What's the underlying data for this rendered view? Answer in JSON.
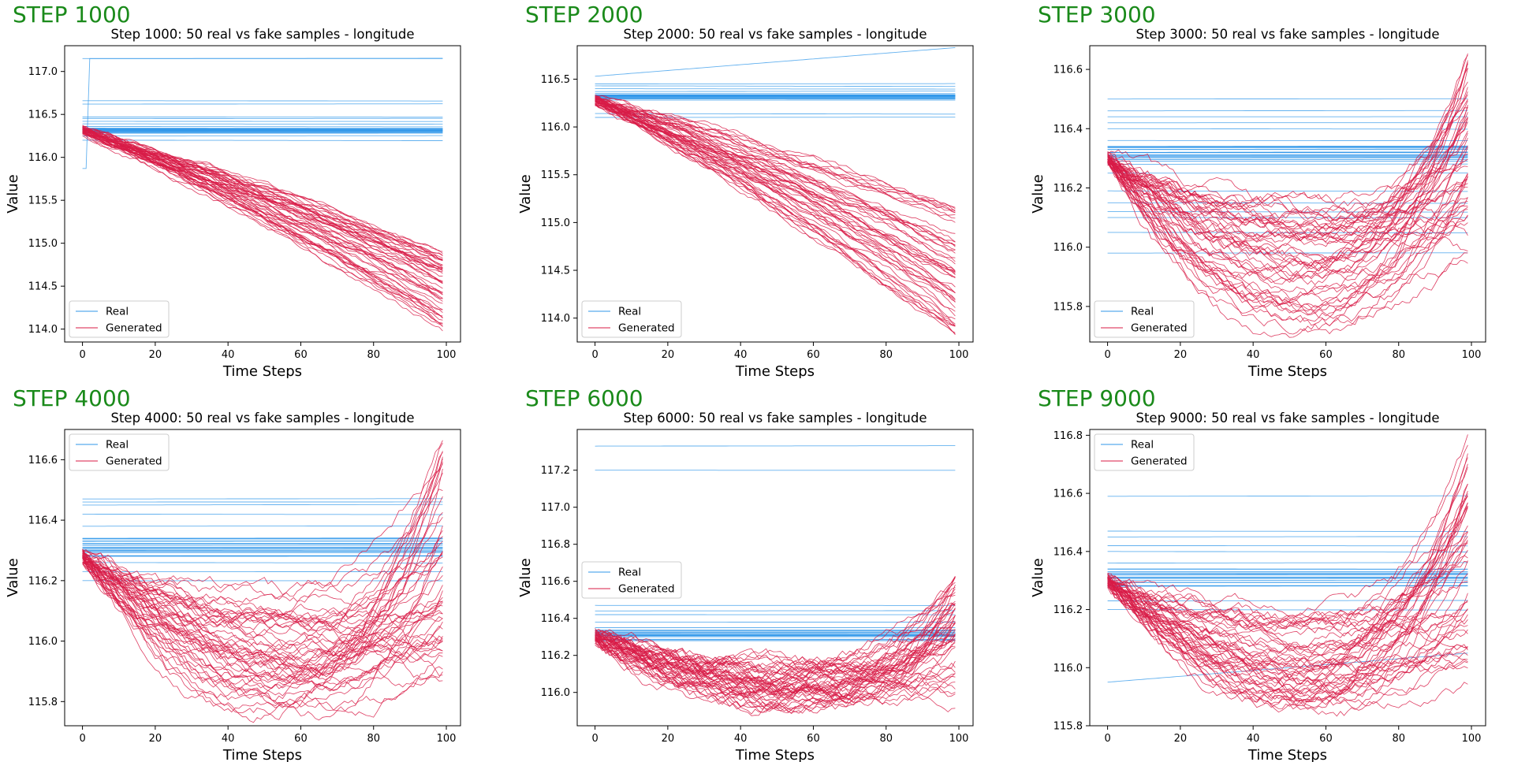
{
  "colors": {
    "real": "#2f97e9",
    "generated": "#d81b46",
    "step_label": "#1a8a1a"
  },
  "legend": {
    "real": "Real",
    "generated": "Generated"
  },
  "xlabel": "Time Steps",
  "ylabel": "Value",
  "chart_data": [
    {
      "step_label": "STEP 1000",
      "type": "line",
      "title": "Step 1000: 50 real vs fake samples - longitude",
      "xlabel": "Time Steps",
      "ylabel": "Value",
      "xlim": [
        0,
        99
      ],
      "ylim": [
        113.85,
        117.3
      ],
      "xticks": [
        0,
        20,
        40,
        60,
        80,
        100
      ],
      "yticks": [
        114.0,
        114.5,
        115.0,
        115.5,
        116.0,
        116.5,
        117.0
      ],
      "legend_loc": "lower-left",
      "real": {
        "levels": [
          117.15,
          116.66,
          116.62,
          116.47,
          116.45,
          116.42,
          116.39,
          116.36,
          116.34,
          116.33,
          116.33,
          116.32,
          116.32,
          116.31,
          116.3,
          116.28,
          116.25,
          116.2
        ],
        "jump": {
          "from": 115.87,
          "to": 117.15,
          "at": 2
        }
      },
      "generated": {
        "pattern": "decline",
        "start": 116.32,
        "end_range": [
          113.95,
          114.95
        ]
      }
    },
    {
      "step_label": "STEP 2000",
      "type": "line",
      "title": "Step 2000: 50 real vs fake samples - longitude",
      "xlabel": "Time Steps",
      "ylabel": "Value",
      "xlim": [
        0,
        99
      ],
      "ylim": [
        113.75,
        116.85
      ],
      "xticks": [
        0,
        20,
        40,
        60,
        80,
        100
      ],
      "yticks": [
        114.0,
        114.5,
        115.0,
        115.5,
        116.0,
        116.5
      ],
      "legend_loc": "lower-left",
      "real": {
        "levels": [
          116.45,
          116.43,
          116.4,
          116.37,
          116.35,
          116.33,
          116.32,
          116.3,
          116.28,
          116.14,
          116.1
        ],
        "rising": {
          "from": 116.53,
          "to": 116.83
        }
      },
      "generated": {
        "pattern": "decline",
        "start": 116.28,
        "end_range": [
          113.82,
          115.15
        ]
      }
    },
    {
      "step_label": "STEP 3000",
      "type": "line",
      "title": "Step 3000: 50 real vs fake samples - longitude",
      "xlabel": "Time Steps",
      "ylabel": "Value",
      "xlim": [
        0,
        99
      ],
      "ylim": [
        115.68,
        116.68
      ],
      "xticks": [
        0,
        20,
        40,
        60,
        80,
        100
      ],
      "yticks": [
        115.8,
        116.0,
        116.2,
        116.4,
        116.6
      ],
      "legend_loc": "lower-left",
      "real": {
        "levels": [
          116.5,
          116.46,
          116.44,
          116.42,
          116.4,
          116.36,
          116.34,
          116.33,
          116.32,
          116.31,
          116.3,
          116.28,
          116.25,
          116.19,
          116.15,
          116.12,
          116.1,
          116.05,
          115.98
        ]
      },
      "generated": {
        "pattern": "u-shape",
        "start": 116.3,
        "min_range": [
          115.72,
          116.15
        ],
        "end_range": [
          115.95,
          116.65
        ]
      }
    },
    {
      "step_label": "STEP 4000",
      "type": "line",
      "title": "Step 4000: 50 real vs fake samples - longitude",
      "xlabel": "Time Steps",
      "ylabel": "Value",
      "xlim": [
        0,
        99
      ],
      "ylim": [
        115.72,
        116.7
      ],
      "xticks": [
        0,
        20,
        40,
        60,
        80,
        100
      ],
      "yticks": [
        115.8,
        116.0,
        116.2,
        116.4,
        116.6
      ],
      "legend_loc": "upper-left",
      "real": {
        "levels": [
          116.47,
          116.46,
          116.45,
          116.42,
          116.38,
          116.34,
          116.33,
          116.32,
          116.31,
          116.3,
          116.28,
          116.26,
          116.23,
          116.2
        ]
      },
      "generated": {
        "pattern": "u-shape",
        "start": 116.28,
        "min_range": [
          115.76,
          116.15
        ],
        "end_range": [
          115.85,
          116.66
        ]
      }
    },
    {
      "step_label": "STEP 6000",
      "type": "line",
      "title": "Step 6000: 50 real vs fake samples - longitude",
      "xlabel": "Time Steps",
      "ylabel": "Value",
      "xlim": [
        0,
        99
      ],
      "ylim": [
        115.82,
        117.42
      ],
      "xticks": [
        0,
        20,
        40,
        60,
        80,
        100
      ],
      "yticks": [
        116.0,
        116.2,
        116.4,
        116.6,
        116.8,
        117.0,
        117.2
      ],
      "legend_loc": "center-left",
      "real": {
        "levels": [
          117.33,
          117.2,
          116.47,
          116.44,
          116.42,
          116.38,
          116.35,
          116.33,
          116.32,
          116.31,
          116.3,
          116.28
        ]
      },
      "generated": {
        "pattern": "u-shape",
        "start": 116.3,
        "min_range": [
          115.92,
          116.15
        ],
        "end_range": [
          115.95,
          116.62
        ]
      }
    },
    {
      "step_label": "STEP 9000",
      "type": "line",
      "title": "Step 9000: 50 real vs fake samples - longitude",
      "xlabel": "Time Steps",
      "ylabel": "Value",
      "xlim": [
        0,
        99
      ],
      "ylim": [
        115.8,
        116.82
      ],
      "xticks": [
        0,
        20,
        40,
        60,
        80,
        100
      ],
      "yticks": [
        115.8,
        116.0,
        116.2,
        116.4,
        116.6,
        116.8
      ],
      "legend_loc": "upper-left",
      "real": {
        "levels": [
          116.59,
          116.47,
          116.45,
          116.42,
          116.4,
          116.36,
          116.34,
          116.33,
          116.32,
          116.31,
          116.3,
          116.28,
          116.23,
          116.2
        ],
        "rising": {
          "from": 115.95,
          "to": 116.05
        }
      },
      "generated": {
        "pattern": "u-shape",
        "start": 116.3,
        "min_range": [
          115.85,
          116.18
        ],
        "end_range": [
          115.9,
          116.76
        ]
      }
    }
  ]
}
